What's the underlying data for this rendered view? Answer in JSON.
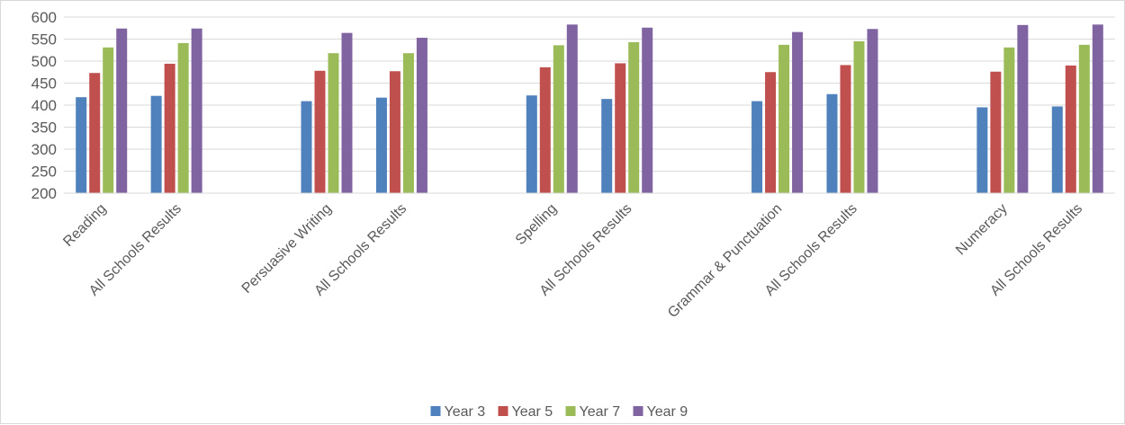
{
  "chart_data": {
    "type": "bar",
    "categories": [
      "Reading",
      "All Schools Results",
      "",
      "Persuasive Writing",
      "All Schools Results",
      "",
      "Spelling",
      "All Schools Results",
      "",
      "Grammar & Punctuation",
      "All Schools Results",
      "",
      "Numeracy",
      "All Schools Results"
    ],
    "series": [
      {
        "name": "Year 3",
        "color": "#4f81bd",
        "values": [
          418,
          421,
          null,
          409,
          417,
          null,
          422,
          414,
          null,
          409,
          425,
          null,
          395,
          397
        ]
      },
      {
        "name": "Year 5",
        "color": "#c0504d",
        "values": [
          473,
          494,
          null,
          478,
          477,
          null,
          486,
          495,
          null,
          475,
          491,
          null,
          476,
          490
        ]
      },
      {
        "name": "Year 7",
        "color": "#9bbb59",
        "values": [
          531,
          541,
          null,
          518,
          518,
          null,
          536,
          543,
          null,
          537,
          545,
          null,
          531,
          537
        ]
      },
      {
        "name": "Year 9",
        "color": "#8064a2",
        "values": [
          574,
          574,
          null,
          564,
          553,
          null,
          583,
          576,
          null,
          566,
          573,
          null,
          582,
          583
        ]
      }
    ],
    "ylim": [
      200,
      600
    ],
    "yticks": [
      "200",
      "250",
      "300",
      "350",
      "400",
      "450",
      "500",
      "550",
      "600"
    ],
    "grid": true,
    "legend": "bottom",
    "gridColor": "#d9d9d9",
    "labelColor": "#595959"
  }
}
